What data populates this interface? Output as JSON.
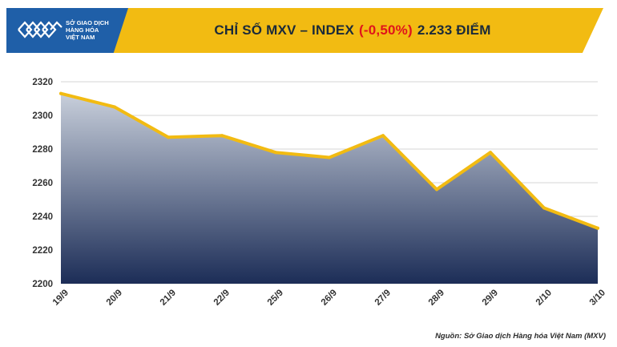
{
  "logo": {
    "lines": [
      "SỞ GIAO DỊCH",
      "HÀNG HÓA",
      "VIỆT NAM"
    ],
    "icon": "mxv-logo-icon"
  },
  "header": {
    "title_prefix": "CHỈ SỐ MXV – INDEX",
    "change": "(-0,50%)",
    "value": "2.233 ĐIỂM"
  },
  "colors": {
    "banner": "#f2bb12",
    "logo_bg": "#1f5fa8",
    "line": "#f2bb12",
    "area_top": "#c8cfdb",
    "area_bottom": "#1c2d57",
    "negative": "#e0141b"
  },
  "chart_data": {
    "type": "area",
    "categories": [
      "19/9",
      "20/9",
      "21/9",
      "22/9",
      "25/9",
      "26/9",
      "27/9",
      "28/9",
      "29/9",
      "2/10",
      "3/10"
    ],
    "values": [
      2313,
      2305,
      2287,
      2288,
      2278,
      2275,
      2288,
      2256,
      2278,
      2245,
      2233
    ],
    "ylim": [
      2200,
      2320
    ],
    "yticks": [
      2200,
      2220,
      2240,
      2260,
      2280,
      2300,
      2320
    ],
    "grid": true
  },
  "footer": {
    "source": "Nguồn: Sở Giao dịch Hàng hóa Việt Nam (MXV)"
  }
}
